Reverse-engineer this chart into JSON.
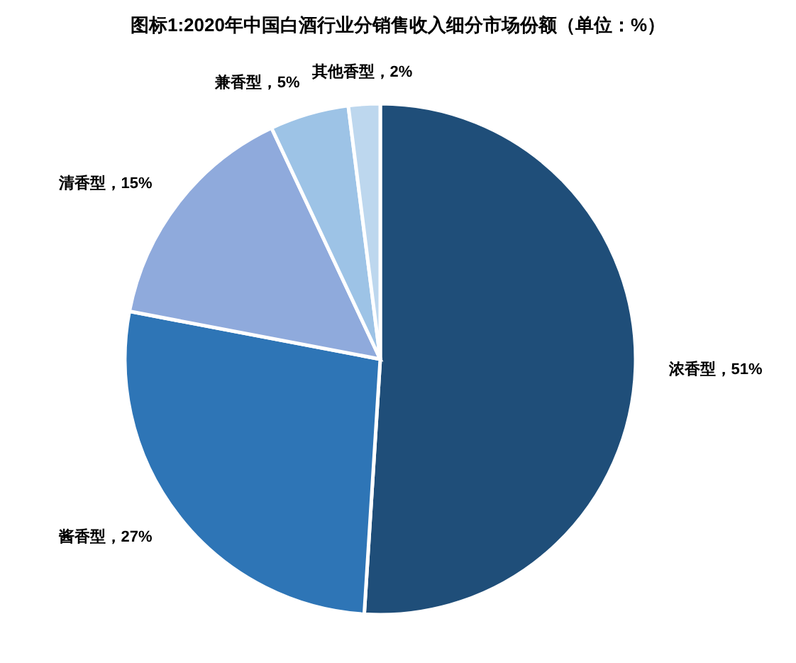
{
  "chart_data": {
    "type": "pie",
    "title": "图标1:2020年中国白酒行业分销售收入细分市场份额（单位：%）",
    "categories": [
      "浓香型",
      "酱香型",
      "清香型",
      "兼香型",
      "其他香型"
    ],
    "values": [
      51,
      27,
      15,
      5,
      2
    ],
    "colors": [
      "#1f4e79",
      "#2e75b6",
      "#8faadc",
      "#9dc3e6",
      "#bdd7ee"
    ],
    "value_labels": [
      "，51%",
      "，27%",
      "，15%",
      "，5%",
      "，2%"
    ],
    "legend": false
  }
}
